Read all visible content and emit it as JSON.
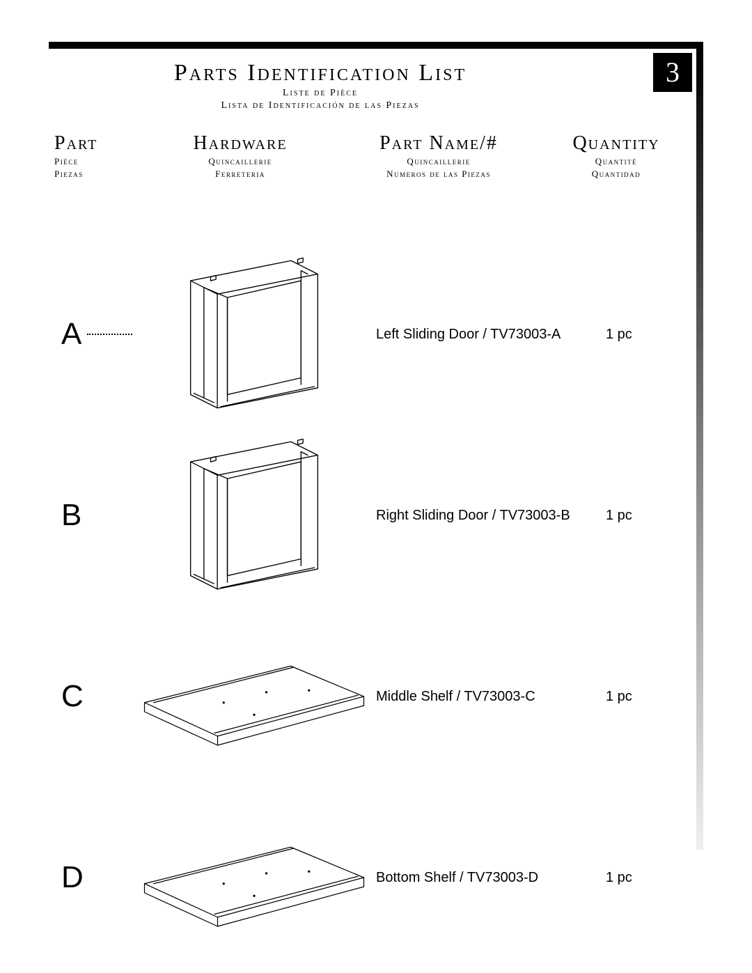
{
  "page_number": "3",
  "title": {
    "main": "Parts  Identification List",
    "sub_fr": "Liste de Pièce",
    "sub_es": "Lista de Identificación de las Piezas"
  },
  "columns": {
    "part": {
      "main": "Part",
      "sub1": "Pièce",
      "sub2": "Piezas"
    },
    "hardware": {
      "main": "Hardware",
      "sub1": "Quincaillerie",
      "sub2": "Ferreteria"
    },
    "partname": {
      "main": "Part Name/#",
      "sub1": "Quincaillerie",
      "sub2": "Numeros de las Piezas"
    },
    "quantity": {
      "main": "Quantity",
      "sub1": "Quantité",
      "sub2": "Quantidad"
    }
  },
  "parts": [
    {
      "letter": "A",
      "has_dots": true,
      "illus": "door",
      "name": "Left Sliding Door / TV73003-A",
      "qty": "1 pc"
    },
    {
      "letter": "B",
      "has_dots": false,
      "illus": "door",
      "name": "Right Sliding Door / TV73003-B",
      "qty": "1 pc"
    },
    {
      "letter": "C",
      "has_dots": false,
      "illus": "shelf",
      "name": "Middle Shelf / TV73003-C",
      "qty": "1 pc"
    },
    {
      "letter": "D",
      "has_dots": false,
      "illus": "shelf",
      "name": "Bottom Shelf / TV73003-D",
      "qty": "1 pc"
    }
  ],
  "style": {
    "page_bg": "#ffffff",
    "ink": "#000000",
    "top_bar_color": "#000000",
    "right_bar_gradient": [
      "#000000",
      "#808080",
      "#f0f0f0"
    ],
    "page_number_bg": "#000000",
    "page_number_fg": "#ffffff",
    "title_fontsize": 34,
    "col_main_fontsize": 28,
    "col_sub_fontsize": 13,
    "letter_fontsize": 44,
    "body_fontsize": 20,
    "illus_stroke": "#000000",
    "illus_stroke_width": 1.4
  }
}
